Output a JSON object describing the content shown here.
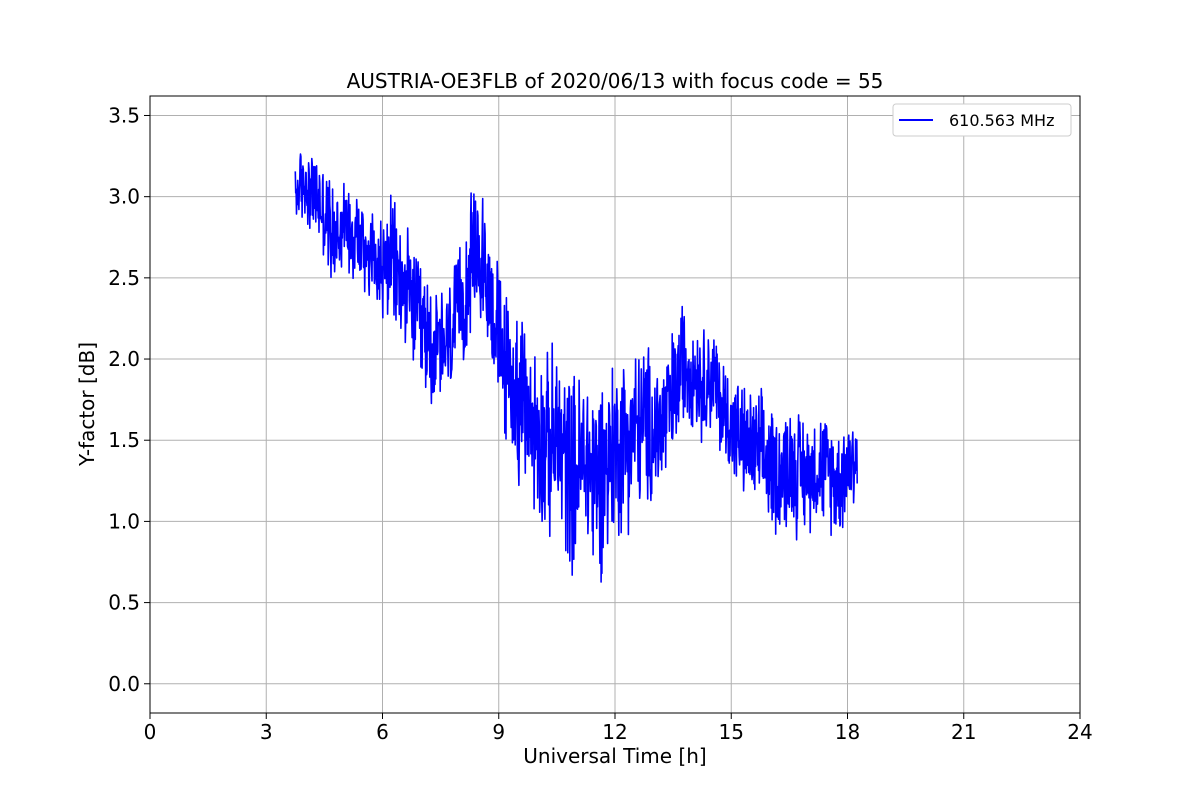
{
  "chart_data": {
    "type": "line",
    "title": "AUSTRIA-OE3FLB of 2020/06/13 with focus code = 55",
    "xlabel": "Universal Time [h]",
    "ylabel": "Y-factor [dB]",
    "xlim": [
      0,
      24
    ],
    "ylim": [
      -0.18,
      3.62
    ],
    "x_ticks": [
      0,
      3,
      6,
      9,
      12,
      15,
      18,
      21,
      24
    ],
    "x_tick_labels": [
      "0",
      "3",
      "6",
      "9",
      "12",
      "15",
      "18",
      "21",
      "24"
    ],
    "y_ticks": [
      0.0,
      0.5,
      1.0,
      1.5,
      2.0,
      2.5,
      3.0,
      3.5
    ],
    "y_tick_labels": [
      "0.0",
      "0.5",
      "1.0",
      "1.5",
      "2.0",
      "2.5",
      "3.0",
      "3.5"
    ],
    "grid": true,
    "legend_position": "top-right",
    "series": [
      {
        "name": "610.563 MHz",
        "color": "#0000ff",
        "x": [
          3.75,
          4.0,
          4.25,
          4.5,
          4.75,
          5.0,
          5.25,
          5.5,
          5.75,
          6.0,
          6.25,
          6.5,
          6.75,
          7.0,
          7.25,
          7.5,
          7.75,
          8.0,
          8.25,
          8.5,
          8.75,
          9.0,
          9.25,
          9.5,
          9.75,
          10.0,
          10.25,
          10.5,
          10.75,
          11.0,
          11.25,
          11.5,
          11.75,
          12.0,
          12.25,
          12.5,
          12.75,
          13.0,
          13.25,
          13.5,
          13.75,
          14.0,
          14.25,
          14.5,
          14.75,
          15.0,
          15.25,
          15.5,
          15.75,
          16.0,
          16.25,
          16.5,
          16.75,
          17.0,
          17.25,
          17.5,
          17.75,
          18.0,
          18.25
        ],
        "y": [
          3.0,
          3.1,
          3.0,
          2.9,
          2.75,
          2.85,
          2.8,
          2.7,
          2.65,
          2.55,
          2.6,
          2.45,
          2.35,
          2.2,
          2.1,
          2.05,
          2.1,
          2.3,
          2.55,
          2.65,
          2.45,
          2.1,
          1.9,
          1.75,
          1.65,
          1.55,
          1.45,
          1.5,
          1.35,
          1.3,
          1.4,
          1.25,
          1.35,
          1.45,
          1.5,
          1.55,
          1.6,
          1.55,
          1.6,
          1.75,
          2.0,
          1.95,
          1.85,
          1.9,
          1.7,
          1.6,
          1.5,
          1.45,
          1.4,
          1.35,
          1.3,
          1.35,
          1.3,
          1.3,
          1.35,
          1.3,
          1.25,
          1.35,
          1.4
        ],
        "noise": [
          0.25,
          0.3,
          0.3,
          0.35,
          0.35,
          0.35,
          0.35,
          0.35,
          0.35,
          0.4,
          0.45,
          0.45,
          0.45,
          0.45,
          0.45,
          0.45,
          0.45,
          0.45,
          0.5,
          0.5,
          0.5,
          0.55,
          0.55,
          0.6,
          0.6,
          0.65,
          0.65,
          0.7,
          0.7,
          0.7,
          0.7,
          0.75,
          0.7,
          0.65,
          0.65,
          0.6,
          0.6,
          0.55,
          0.55,
          0.5,
          0.45,
          0.4,
          0.4,
          0.4,
          0.4,
          0.4,
          0.4,
          0.4,
          0.45,
          0.45,
          0.45,
          0.45,
          0.45,
          0.4,
          0.4,
          0.4,
          0.4,
          0.4,
          0.35
        ]
      }
    ]
  }
}
